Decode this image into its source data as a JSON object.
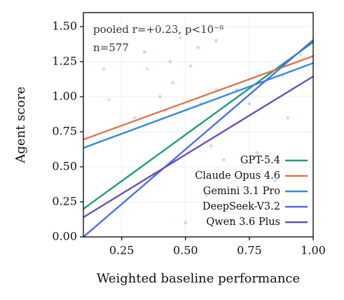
{
  "chart_data": {
    "type": "line",
    "annotation": "pooled r=+0.23, p<10⁻⁸",
    "annotation_n": "n=577",
    "x_label": "Weighted baseline performance",
    "y_label": "Agent score",
    "xlim": [
      0.1,
      1.0
    ],
    "ylim": [
      0,
      1.6
    ],
    "xticks": [
      {
        "value": 0.25,
        "label": "0.25"
      },
      {
        "value": 0.5,
        "label": "0.50"
      },
      {
        "value": 0.75,
        "label": "0.75"
      },
      {
        "value": 1.0,
        "label": "1.00"
      }
    ],
    "yticks": [
      {
        "value": 0,
        "label": "0.00"
      },
      {
        "value": 0.25,
        "label": "0.25"
      },
      {
        "value": 0.5,
        "label": "0.50"
      },
      {
        "value": 0.75,
        "label": "0.75"
      },
      {
        "value": 1.0,
        "label": "1.00"
      },
      {
        "value": 1.25,
        "label": "1.25"
      },
      {
        "value": 1.5,
        "label": "1.50"
      }
    ],
    "grid": true,
    "legend": "lower right",
    "x": [
      0.1,
      1.0
    ],
    "series": [
      {
        "name": "GPT-5.4",
        "color": "#1b9e77",
        "values": [
          0.2,
          1.39
        ],
        "scatter_x": [
          0.45,
          0.6,
          0.72,
          0.55,
          0.88,
          0.38
        ],
        "scatter_y": [
          1.1,
          0.65,
          0.2,
          1.35,
          1.15,
          0.45
        ]
      },
      {
        "name": "Claude Opus 4.6",
        "color": "#d9764f",
        "values": [
          0.695,
          1.29
        ],
        "scatter_x": [
          0.2,
          0.48,
          0.62,
          0.8,
          0.35,
          0.95
        ],
        "scatter_y": [
          0.98,
          1.42,
          1.05,
          0.1,
          1.2,
          1.3
        ]
      },
      {
        "name": "Gemini 3.1 Pro",
        "color": "#3a87e0",
        "values": [
          0.635,
          1.24
        ],
        "scatter_x": [
          0.18,
          0.42,
          0.58,
          0.7,
          0.9,
          0.52
        ],
        "scatter_y": [
          1.2,
          0.9,
          0.3,
          1.05,
          0.85,
          1.22
        ]
      },
      {
        "name": "DeepSeek-V3.2",
        "color": "#4c6ef0",
        "values": [
          0.0,
          1.405
        ],
        "scatter_x": [
          0.3,
          0.5,
          0.65,
          0.4,
          0.85,
          0.6,
          0.75
        ],
        "scatter_y": [
          0.85,
          0.1,
          0.55,
          1.0,
          0.4,
          1.5,
          0.95
        ]
      },
      {
        "name": "Qwen 3.6 Plus",
        "color": "#6a4fb5",
        "values": [
          0.14,
          1.145
        ],
        "scatter_x": [
          0.44,
          0.56,
          0.68,
          0.34,
          0.78,
          0.62
        ],
        "scatter_y": [
          1.25,
          0.95,
          0.12,
          1.32,
          0.6,
          1.4
        ]
      }
    ]
  }
}
